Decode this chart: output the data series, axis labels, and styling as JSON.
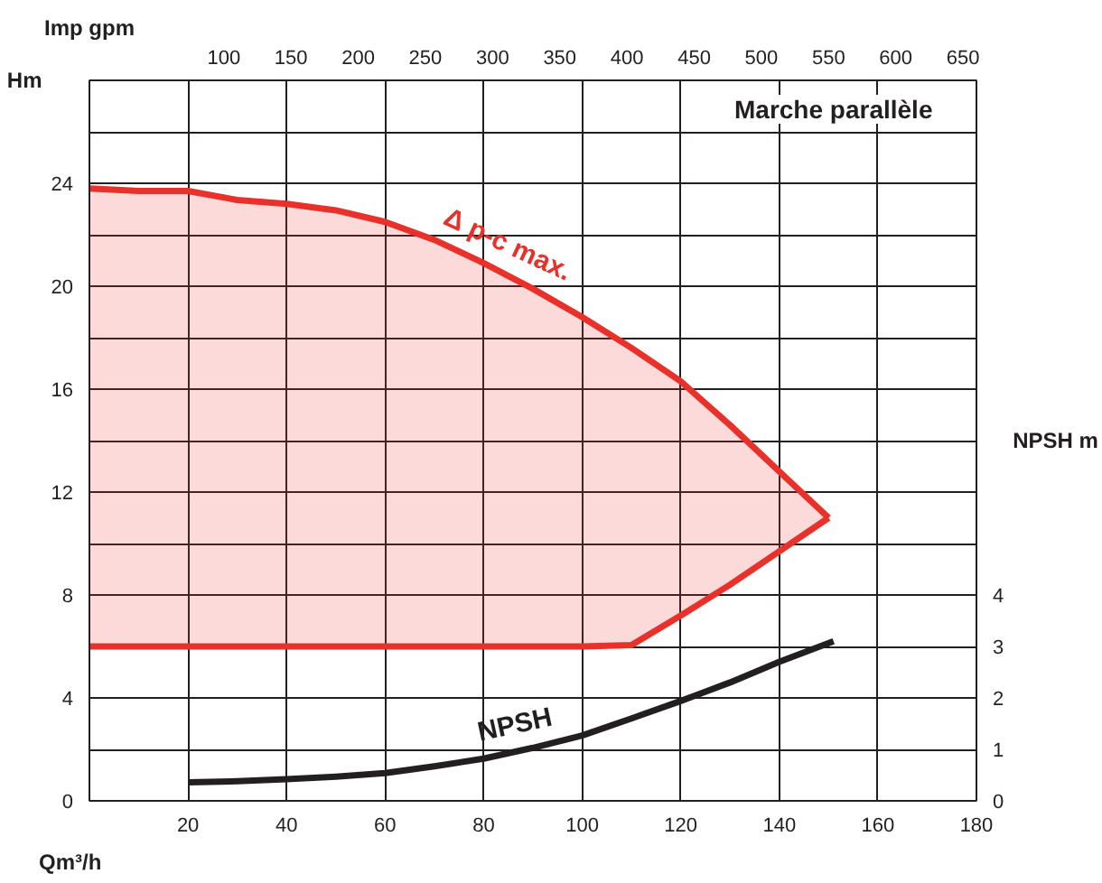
{
  "chart_data": {
    "type": "area",
    "subtitle": "Marche parallèle",
    "xlabel": "Qm³/h",
    "ylabel": "Hm",
    "x2label": "Imp gpm",
    "y2label": "NPSH m",
    "xlim": [
      0,
      180
    ],
    "xticks": [
      {
        "value": 0,
        "label": null
      },
      20,
      40,
      60,
      80,
      100,
      120,
      140,
      160,
      180
    ],
    "ylim": [
      0,
      28
    ],
    "yticks": [
      0,
      {
        "value": 2,
        "label": null
      },
      4,
      {
        "value": 6,
        "label": null
      },
      8,
      {
        "value": 10,
        "label": null
      },
      12,
      {
        "value": 14,
        "label": null
      },
      16,
      {
        "value": 18,
        "label": null
      },
      20,
      {
        "value": 22,
        "label": null
      },
      24,
      {
        "value": 26,
        "label": null
      }
    ],
    "x2lim": [
      0,
      660
    ],
    "x2ticks": [
      100,
      150,
      200,
      250,
      300,
      350,
      400,
      450,
      500,
      550,
      600,
      650
    ],
    "y2lim": [
      0,
      14
    ],
    "y2ticks": [
      0,
      1,
      2,
      3,
      4
    ],
    "grid": true,
    "series": [
      {
        "name": "Δ p-c max.",
        "color": "#e8312a",
        "x": [
          0,
          10,
          20,
          30,
          40,
          50,
          60,
          70,
          80,
          90,
          100,
          110,
          120,
          130,
          140,
          150
        ],
        "values": [
          23.8,
          23.7,
          23.7,
          23.35,
          23.2,
          22.95,
          22.5,
          21.8,
          20.9,
          19.9,
          18.8,
          17.6,
          16.3,
          14.6,
          12.8,
          11.0
        ]
      },
      {
        "type": "line",
        "color": "#e8312a",
        "x": [
          0,
          10,
          20,
          30,
          40,
          50,
          60,
          70,
          80,
          90,
          100,
          110,
          120,
          130,
          140,
          150
        ],
        "values": [
          6,
          6,
          6,
          6,
          6,
          6,
          6,
          6,
          6,
          6,
          6,
          6.05,
          7.2,
          8.4,
          9.7,
          11.0
        ]
      },
      {
        "name": "NPSH",
        "type": "line",
        "axis": "y2",
        "color": "#231f20",
        "x": [
          20,
          30,
          40,
          50,
          60,
          70,
          80,
          90,
          100,
          110,
          120,
          130,
          140,
          151
        ],
        "values": [
          0.36,
          0.38,
          0.42,
          0.47,
          0.54,
          0.67,
          0.82,
          1.03,
          1.27,
          1.6,
          1.94,
          2.3,
          2.7,
          3.1
        ]
      }
    ]
  }
}
